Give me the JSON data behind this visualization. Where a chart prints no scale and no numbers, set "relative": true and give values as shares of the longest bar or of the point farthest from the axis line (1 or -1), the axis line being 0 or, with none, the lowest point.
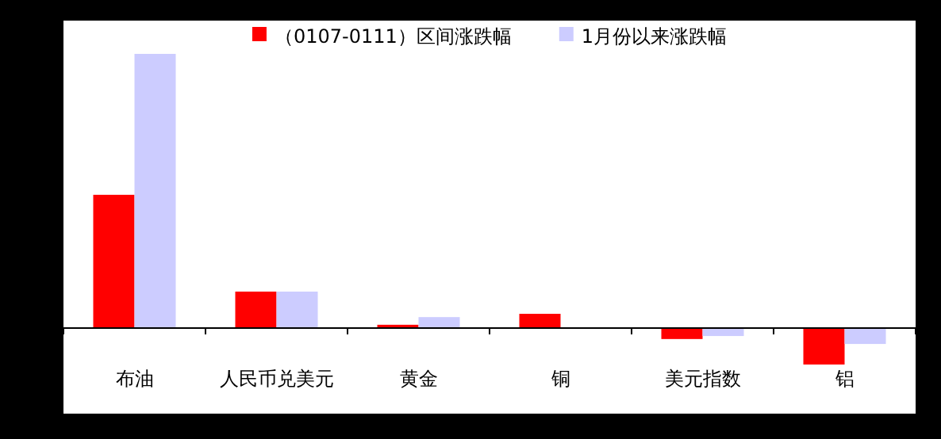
{
  "chart_data": {
    "type": "bar",
    "relative": true,
    "legend": "top",
    "categories": [
      "布油",
      "人民币兑美元",
      "黄金",
      "铜",
      "美元指数",
      "铝"
    ],
    "series": [
      {
        "name": "（0107-0111）区间涨跌幅",
        "color": "#ff0000",
        "values": [
          0.486,
          0.133,
          0.012,
          0.052,
          -0.04,
          -0.133
        ]
      },
      {
        "name": "1月份以来涨跌幅",
        "color": "#ccccff",
        "values": [
          1,
          0.133,
          0.04,
          null,
          -0.029,
          -0.058
        ]
      }
    ]
  }
}
